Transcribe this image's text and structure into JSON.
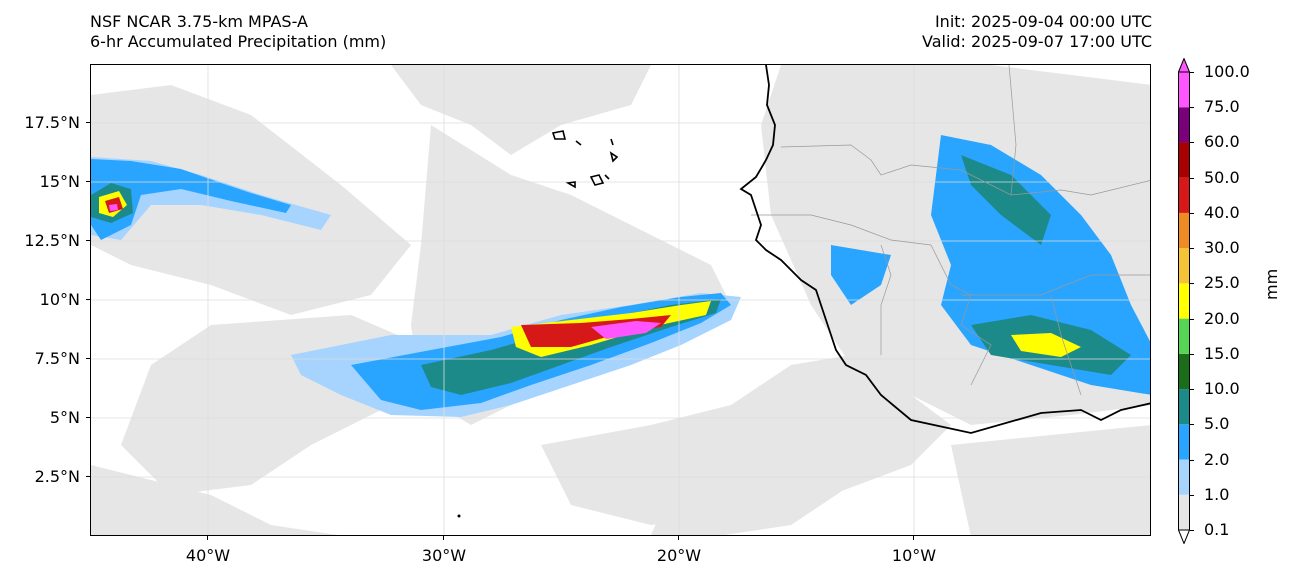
{
  "header": {
    "title_line1": "NSF NCAR 3.75-km MPAS-A",
    "title_line2": "6-hr Accumulated Precipitation (mm)",
    "init": "Init: 2025-09-04 00:00 UTC",
    "valid": "Valid: 2025-09-07 17:00 UTC"
  },
  "map": {
    "lat_labels": [
      "17.5°N",
      "15°N",
      "12.5°N",
      "10°N",
      "7.5°N",
      "5°N",
      "2.5°N"
    ],
    "lon_labels": [
      "40°W",
      "30°W",
      "20°W",
      "10°W"
    ]
  },
  "colorbar": {
    "unit": "mm",
    "levels": [
      "0.1",
      "1.0",
      "2.0",
      "5.0",
      "10.0",
      "15.0",
      "20.0",
      "25.0",
      "30.0",
      "40.0",
      "50.0",
      "60.0",
      "75.0",
      "100.0"
    ],
    "colors": [
      "#e6e6e6",
      "#a6d4ff",
      "#2aa5ff",
      "#1d8a8a",
      "#1a6e1a",
      "#55d455",
      "#ffff00",
      "#f5c238",
      "#ef8b25",
      "#d61818",
      "#a80000",
      "#7a007a",
      "#ff55ff"
    ]
  }
}
